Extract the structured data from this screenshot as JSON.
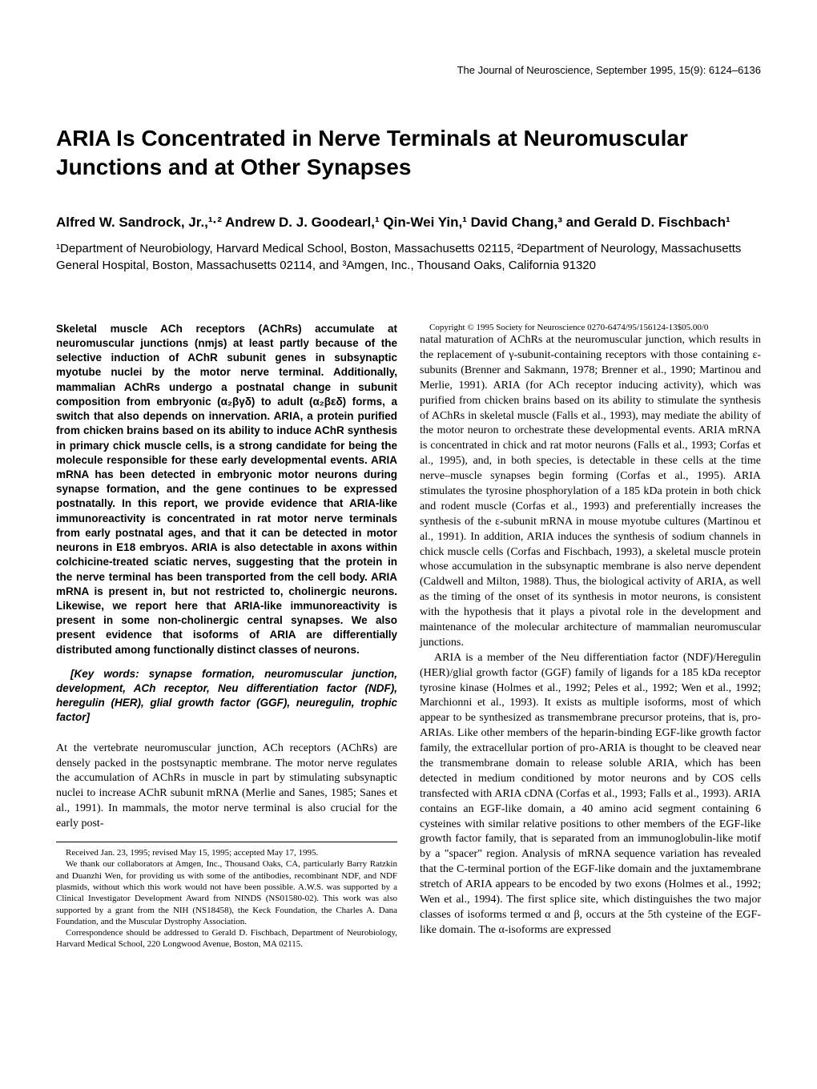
{
  "header": "The Journal of Neuroscience, September 1995, 15(9): 6124–6136",
  "title": "ARIA Is Concentrated in Nerve Terminals at Neuromuscular Junctions and at Other Synapses",
  "authors": "Alfred W. Sandrock, Jr.,¹·² Andrew D. J. Goodearl,¹ Qin-Wei Yin,¹ David Chang,³ and Gerald D. Fischbach¹",
  "affiliations": "¹Department of Neurobiology, Harvard Medical School, Boston, Massachusetts 02115, ²Department of Neurology, Massachusetts General Hospital, Boston, Massachusetts 02114, and ³Amgen, Inc., Thousand Oaks, California 91320",
  "abstract": "Skeletal muscle ACh receptors (AChRs) accumulate at neuromuscular junctions (nmjs) at least partly because of the selective induction of AChR subunit genes in subsynaptic myotube nuclei by the motor nerve terminal. Additionally, mammalian AChRs undergo a postnatal change in subunit composition from embryonic (α₂βγδ) to adult (α₂βεδ) forms, a switch that also depends on innervation. ARIA, a protein purified from chicken brains based on its ability to induce AChR synthesis in primary chick muscle cells, is a strong candidate for being the molecule responsible for these early developmental events. ARIA mRNA has been detected in embryonic motor neurons during synapse formation, and the gene continues to be expressed postnatally. In this report, we provide evidence that ARIA-like immunoreactivity is concentrated in rat motor nerve terminals from early postnatal ages, and that it can be detected in motor neurons in E18 embryos. ARIA is also detectable in axons within colchicine-treated sciatic nerves, suggesting that the protein in the nerve terminal has been transported from the cell body. ARIA mRNA is present in, but not restricted to, cholinergic neurons. Likewise, we report here that ARIA-like immunoreactivity is present in some non-cholinergic central synapses. We also present evidence that isoforms of ARIA are differentially distributed among functionally distinct classes of neurons.",
  "keywords": "[Key words: synapse formation, neuromuscular junction, development, ACh receptor, Neu differentiation factor (NDF), heregulin (HER), glial growth factor (GGF), neuregulin, trophic factor]",
  "body1": "At the vertebrate neuromuscular junction, ACh receptors (AChRs) are densely packed in the postsynaptic membrane. The motor nerve regulates the accumulation of AChRs in muscle in part by stimulating subsynaptic nuclei to increase AChR subunit mRNA (Merlie and Sanes, 1985; Sanes et al., 1991). In mammals, the motor nerve terminal is also crucial for the early post-",
  "body2": "natal maturation of AChRs at the neuromuscular junction, which results in the replacement of γ-subunit-containing receptors with those containing ε- subunits (Brenner and Sakmann, 1978; Brenner et al., 1990; Martinou and Merlie, 1991). ARIA (for ACh receptor inducing activity), which was purified from chicken brains based on its ability to stimulate the synthesis of AChRs in skeletal muscle (Falls et al., 1993), may mediate the ability of the motor neuron to orchestrate these developmental events. ARIA mRNA is concentrated in chick and rat motor neurons (Falls et al., 1993; Corfas et al., 1995), and, in both species, is detectable in these cells at the time nerve–muscle synapses begin forming (Corfas et al., 1995). ARIA stimulates the tyrosine phosphorylation of a 185 kDa protein in both chick and rodent muscle (Corfas et al., 1993) and preferentially increases the synthesis of the ε-subunit mRNA in mouse myotube cultures (Martinou et al., 1991). In addition, ARIA induces the synthesis of sodium channels in chick muscle cells (Corfas and Fischbach, 1993), a skeletal muscle protein whose accumulation in the subsynaptic membrane is also nerve dependent (Caldwell and Milton, 1988). Thus, the biological activity of ARIA, as well as the timing of the onset of its synthesis in motor neurons, is consistent with the hypothesis that it plays a pivotal role in the development and maintenance of the molecular architecture of mammalian neuromuscular junctions.",
  "body3": "ARIA is a member of the Neu differentiation factor (NDF)/Heregulin (HER)/glial growth factor (GGF) family of ligands for a 185 kDa receptor tyrosine kinase (Holmes et al., 1992; Peles et al., 1992; Wen et al., 1992; Marchionni et al., 1993). It exists as multiple isoforms, most of which appear to be synthesized as transmembrane precursor proteins, that is, pro-ARIAs. Like other members of the heparin-binding EGF-like growth factor family, the extracellular portion of pro-ARIA is thought to be cleaved near the transmembrane domain to release soluble ARIA, which has been detected in medium conditioned by motor neurons and by COS cells transfected with ARIA cDNA (Corfas et al., 1993; Falls et al., 1993). ARIA contains an EGF-like domain, a 40 amino acid segment containing 6 cysteines with similar relative positions to other members of the EGF-like growth factor family, that is separated from an immunoglobulin-like motif by a \"spacer\" region. Analysis of mRNA sequence variation has revealed that the C-terminal portion of the EGF-like domain and the juxtamembrane stretch of ARIA appears to be encoded by two exons (Holmes et al., 1992; Wen et al., 1994). The first splice site, which distinguishes the two major classes of isoforms termed α and β, occurs at the 5th cysteine of the EGF-like domain. The α-isoforms are expressed",
  "footnote1": "Received Jan. 23, 1995; revised May 15, 1995; accepted May 17, 1995.",
  "footnote2": "We thank our collaborators at Amgen, Inc., Thousand Oaks, CA, particularly Barry Ratzkin and Duanzhi Wen, for providing us with some of the antibodies, recombinant NDF, and NDF plasmids, without which this work would not have been possible. A.W.S. was supported by a Clinical Investigator Development Award from NINDS (NS01580-02). This work was also supported by a grant from the NIH (NS18458), the Keck Foundation, the Charles A. Dana Foundation, and the Muscular Dystrophy Association.",
  "footnote3": "Correspondence should be addressed to Gerald D. Fischbach, Department of Neurobiology, Harvard Medical School, 220 Longwood Avenue, Boston, MA 02115.",
  "footnote4": "Copyright © 1995 Society for Neuroscience 0270-6474/95/156124-13$05.00/0"
}
